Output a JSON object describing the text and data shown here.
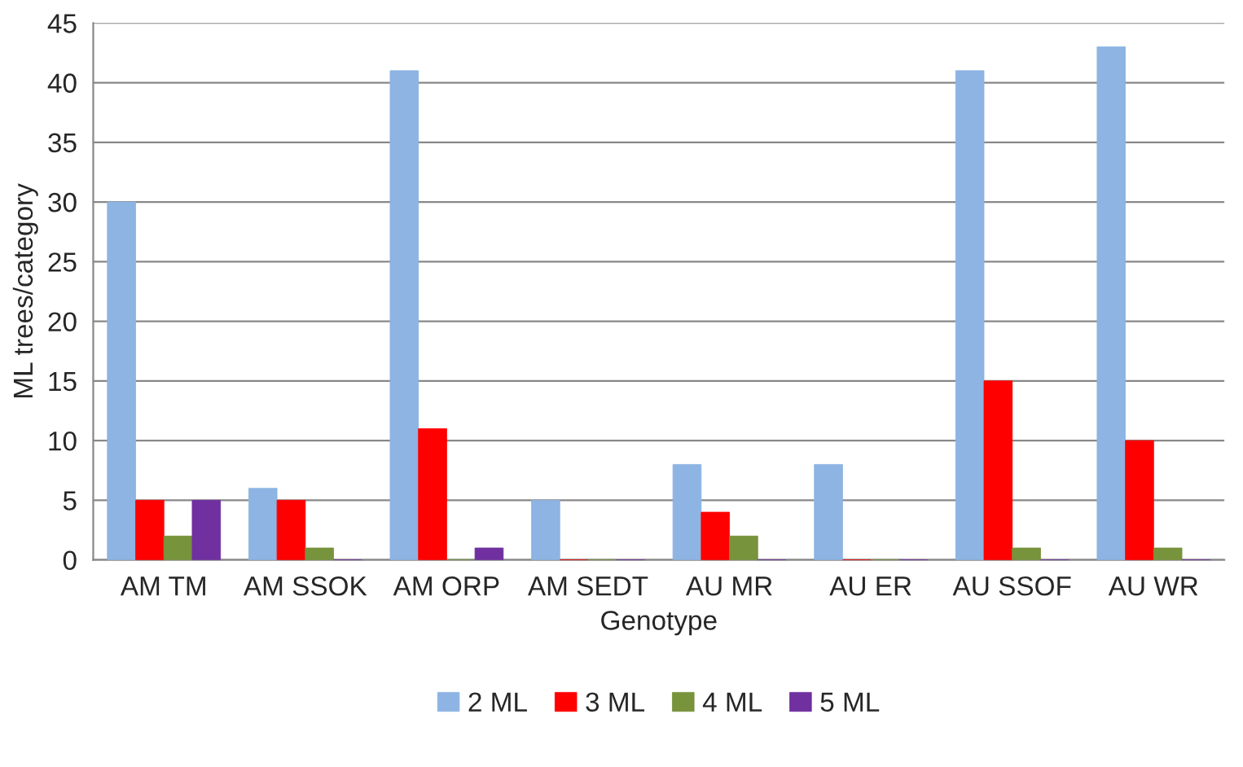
{
  "chart_data": {
    "type": "bar",
    "xlabel": "Genotype",
    "ylabel": "ML trees/category",
    "categories": [
      "AM TM",
      "AM SSOK",
      "AM ORP",
      "AM SEDT",
      "AU MR",
      "AU ER",
      "AU SSOF",
      "AU WR"
    ],
    "series": [
      {
        "name": "2 ML",
        "color": "#8db4e2",
        "values": [
          30,
          6,
          41,
          5,
          8,
          8,
          41,
          43
        ]
      },
      {
        "name": "3 ML",
        "color": "#ff0000",
        "values": [
          5,
          5,
          11,
          0,
          4,
          0,
          15,
          10
        ]
      },
      {
        "name": "4 ML",
        "color": "#77933c",
        "values": [
          2,
          1,
          0,
          0,
          2,
          0,
          1,
          1
        ]
      },
      {
        "name": "5 ML",
        "color": "#7030a0",
        "values": [
          5,
          0,
          1,
          0,
          0,
          0,
          0,
          0
        ]
      }
    ],
    "ylim": [
      0,
      45
    ],
    "yticks": [
      0,
      5,
      10,
      15,
      20,
      25,
      30,
      35,
      40,
      45
    ],
    "grid": "y",
    "legend": "bottom"
  }
}
